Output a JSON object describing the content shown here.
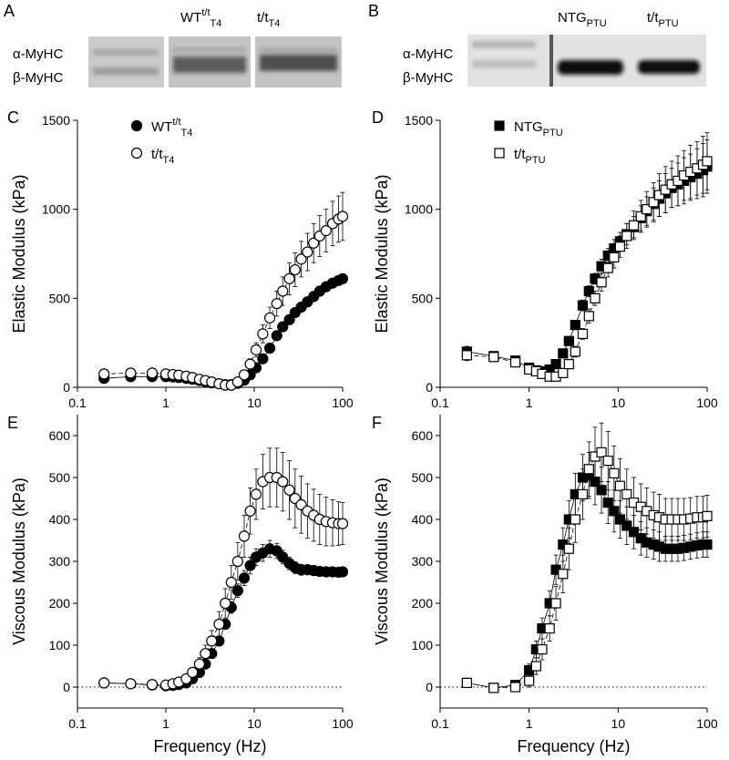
{
  "gels": [
    {
      "label": "A",
      "row_labels": [
        "α-MyHC",
        "β-MyHC"
      ],
      "lane_labels": [
        {
          "main": "WT",
          "sup": "t/t",
          "sub": "T4"
        },
        {
          "main": "t/t",
          "sub": "T4"
        }
      ]
    },
    {
      "label": "B",
      "row_labels": [
        "α-MyHC",
        "β-MyHC"
      ],
      "lane_labels": [
        {
          "main": "NTG",
          "sub": "PTU"
        },
        {
          "main": "t/t",
          "sub": "PTU"
        }
      ]
    }
  ],
  "chart_data": [
    {
      "type": "line",
      "panel_label": "C",
      "ylabel": "Elastic Modulus (kPa)",
      "xscale": "log",
      "x": [
        0.2,
        0.4,
        0.7,
        1,
        1.2,
        1.4,
        1.7,
        2,
        2.4,
        2.8,
        3.3,
        4,
        4.7,
        5.5,
        6.5,
        7.7,
        9,
        10.5,
        12.5,
        15,
        18,
        21,
        25,
        29,
        34,
        40,
        47,
        55,
        65,
        77,
        90,
        100
      ],
      "xlim": [
        0.1,
        100
      ],
      "xticks": [
        0.1,
        1,
        10,
        100
      ],
      "ylim": [
        0,
        1500
      ],
      "yticks": [
        0,
        500,
        1000,
        1500
      ],
      "legend": "upper left",
      "series": [
        {
          "name": "WT",
          "name_sup": "t/t",
          "name_sub": "T4",
          "color": "#000000",
          "marker": "circle",
          "marker_fill": "#000000",
          "dash": "solid",
          "values": [
            50,
            60,
            60,
            60,
            58,
            55,
            50,
            45,
            38,
            32,
            25,
            20,
            15,
            15,
            22,
            40,
            70,
            110,
            160,
            220,
            290,
            340,
            380,
            420,
            450,
            480,
            510,
            540,
            565,
            585,
            600,
            610
          ]
        },
        {
          "name": "t/t",
          "name_sub": "T4",
          "color": "#000000",
          "marker": "circle",
          "marker_fill": "#ffffff",
          "dash": "dashed",
          "values": [
            75,
            80,
            80,
            75,
            72,
            68,
            62,
            55,
            45,
            38,
            30,
            20,
            12,
            12,
            30,
            70,
            130,
            210,
            300,
            390,
            470,
            540,
            610,
            660,
            720,
            760,
            810,
            850,
            880,
            920,
            945,
            960
          ],
          "errors": [
            10,
            10,
            10,
            10,
            10,
            10,
            10,
            10,
            10,
            10,
            10,
            10,
            10,
            10,
            10,
            20,
            30,
            40,
            50,
            60,
            70,
            80,
            90,
            95,
            100,
            105,
            110,
            115,
            120,
            125,
            130,
            135
          ]
        }
      ]
    },
    {
      "type": "line",
      "panel_label": "D",
      "ylabel": "Elastic Modulus (kPa)",
      "xscale": "log",
      "x": [
        0.2,
        0.4,
        0.7,
        1,
        1.2,
        1.4,
        1.7,
        2,
        2.4,
        2.8,
        3.3,
        4,
        4.7,
        5.5,
        6.5,
        7.7,
        9,
        10.5,
        12.5,
        15,
        18,
        21,
        25,
        29,
        34,
        40,
        47,
        55,
        65,
        77,
        90,
        100
      ],
      "xlim": [
        0.1,
        100
      ],
      "xticks": [
        0.1,
        1,
        10,
        100
      ],
      "ylim": [
        0,
        1500
      ],
      "yticks": [
        0,
        500,
        1000,
        1500
      ],
      "legend": "upper left",
      "series": [
        {
          "name": "NTG",
          "name_sub": "PTU",
          "color": "#000000",
          "marker": "square",
          "marker_fill": "#000000",
          "dash": "solid",
          "values": [
            200,
            175,
            150,
            110,
            95,
            90,
            100,
            130,
            190,
            260,
            350,
            460,
            540,
            610,
            680,
            740,
            780,
            820,
            860,
            900,
            950,
            990,
            1030,
            1060,
            1090,
            1120,
            1140,
            1160,
            1180,
            1200,
            1220,
            1240
          ],
          "errors": [
            30,
            20,
            20,
            20,
            20,
            20,
            20,
            20,
            20,
            20,
            20,
            30,
            30,
            30,
            40,
            40,
            50,
            50,
            60,
            60,
            70,
            80,
            90,
            100,
            110,
            110,
            120,
            130,
            130,
            140,
            150,
            150
          ]
        },
        {
          "name": "t/t",
          "name_sub": "PTU",
          "color": "#000000",
          "marker": "square",
          "marker_fill": "#ffffff",
          "dash": "dashed",
          "values": [
            180,
            170,
            140,
            100,
            90,
            75,
            60,
            60,
            80,
            130,
            200,
            300,
            400,
            500,
            590,
            670,
            730,
            790,
            850,
            910,
            960,
            1000,
            1040,
            1080,
            1110,
            1140,
            1160,
            1190,
            1210,
            1230,
            1250,
            1270
          ],
          "errors": [
            30,
            20,
            20,
            20,
            20,
            20,
            20,
            20,
            20,
            20,
            30,
            30,
            40,
            40,
            50,
            50,
            60,
            60,
            70,
            80,
            90,
            100,
            110,
            120,
            130,
            130,
            140,
            140,
            150,
            150,
            160,
            160
          ]
        }
      ]
    },
    {
      "type": "line",
      "panel_label": "E",
      "ylabel": "Viscous Modulus (kPa)",
      "xlabel": "Frequency (Hz)",
      "xscale": "log",
      "zero_line": true,
      "x": [
        0.2,
        0.4,
        0.7,
        1,
        1.2,
        1.4,
        1.7,
        2,
        2.4,
        2.8,
        3.3,
        4,
        4.7,
        5.5,
        6.5,
        7.7,
        9,
        10.5,
        12.5,
        15,
        18,
        21,
        25,
        29,
        34,
        40,
        47,
        55,
        65,
        77,
        90,
        100
      ],
      "xlim": [
        0.1,
        100
      ],
      "xticks": [
        0.1,
        1,
        10,
        100
      ],
      "ylim": [
        -50,
        650
      ],
      "yticks": [
        0,
        100,
        200,
        300,
        400,
        500,
        600
      ],
      "series": [
        {
          "name": "WT",
          "name_sup": "t/t",
          "name_sub": "T4",
          "color": "#000000",
          "marker": "circle",
          "marker_fill": "#000000",
          "dash": "solid",
          "values": [
            10,
            8,
            5,
            3,
            4,
            6,
            10,
            20,
            35,
            55,
            80,
            110,
            150,
            190,
            230,
            260,
            290,
            310,
            320,
            330,
            325,
            310,
            295,
            285,
            280,
            280,
            278,
            276,
            275,
            275,
            274,
            275
          ],
          "errors": [
            3,
            3,
            3,
            3,
            3,
            3,
            3,
            4,
            5,
            6,
            8,
            10,
            12,
            14,
            16,
            18,
            20,
            20,
            20,
            20,
            18,
            16,
            15,
            14,
            13,
            12,
            12,
            11,
            11,
            10,
            10,
            10
          ]
        },
        {
          "name": "t/t",
          "name_sub": "T4",
          "color": "#000000",
          "marker": "circle",
          "marker_fill": "#ffffff",
          "dash": "dashed",
          "values": [
            10,
            8,
            6,
            5,
            8,
            12,
            20,
            35,
            55,
            80,
            110,
            150,
            200,
            250,
            300,
            360,
            420,
            460,
            490,
            500,
            500,
            490,
            470,
            450,
            435,
            420,
            410,
            400,
            395,
            392,
            390,
            390
          ],
          "errors": [
            5,
            5,
            5,
            5,
            5,
            5,
            5,
            10,
            15,
            20,
            25,
            30,
            35,
            40,
            45,
            50,
            55,
            60,
            65,
            70,
            70,
            70,
            70,
            70,
            68,
            65,
            62,
            60,
            58,
            55,
            52,
            50
          ]
        }
      ]
    },
    {
      "type": "line",
      "panel_label": "F",
      "ylabel": "Viscous Modulus (kPa)",
      "xlabel": "Frequency (Hz)",
      "xscale": "log",
      "zero_line": true,
      "x": [
        0.2,
        0.4,
        0.7,
        1,
        1.2,
        1.4,
        1.7,
        2,
        2.4,
        2.8,
        3.3,
        4,
        4.7,
        5.5,
        6.5,
        7.7,
        9,
        10.5,
        12.5,
        15,
        18,
        21,
        25,
        29,
        34,
        40,
        47,
        55,
        65,
        77,
        90,
        100
      ],
      "xlim": [
        0.1,
        100
      ],
      "xticks": [
        0.1,
        1,
        10,
        100
      ],
      "ylim": [
        -50,
        650
      ],
      "yticks": [
        0,
        100,
        200,
        300,
        400,
        500,
        600
      ],
      "series": [
        {
          "name": "NTG",
          "name_sub": "PTU",
          "color": "#000000",
          "marker": "square",
          "marker_fill": "#000000",
          "dash": "solid",
          "values": [
            10,
            -2,
            5,
            40,
            90,
            140,
            200,
            280,
            340,
            400,
            460,
            500,
            505,
            490,
            470,
            440,
            420,
            400,
            385,
            370,
            355,
            345,
            340,
            335,
            330,
            330,
            330,
            332,
            335,
            338,
            340,
            340
          ],
          "errors": [
            10,
            8,
            10,
            15,
            20,
            25,
            30,
            35,
            40,
            45,
            50,
            55,
            55,
            55,
            55,
            50,
            50,
            45,
            45,
            40,
            40,
            35,
            35,
            35,
            30,
            30,
            30,
            30,
            30,
            30,
            30,
            30
          ]
        },
        {
          "name": "t/t",
          "name_sub": "PTU",
          "color": "#000000",
          "marker": "square",
          "marker_fill": "#ffffff",
          "dash": "dashed",
          "values": [
            10,
            -2,
            0,
            15,
            50,
            90,
            140,
            200,
            270,
            330,
            400,
            460,
            520,
            550,
            560,
            540,
            510,
            480,
            460,
            440,
            430,
            420,
            410,
            405,
            400,
            400,
            400,
            400,
            402,
            405,
            405,
            408
          ],
          "errors": [
            10,
            8,
            10,
            15,
            20,
            25,
            30,
            40,
            45,
            50,
            55,
            60,
            65,
            70,
            70,
            70,
            65,
            65,
            60,
            60,
            55,
            55,
            55,
            55,
            50,
            50,
            50,
            50,
            50,
            50,
            50,
            50
          ]
        }
      ]
    }
  ]
}
